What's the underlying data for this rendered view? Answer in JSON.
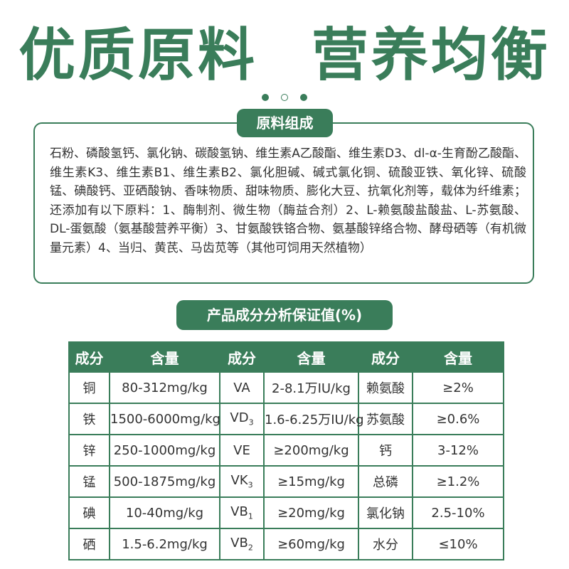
{
  "headline": {
    "left": "优质原料",
    "right": "营养均衡"
  },
  "composition": {
    "label": "原料组成",
    "text": "石粉、磷酸氢钙、氯化钠、碳酸氢钠、维生素A乙酸酯、维生素D3、dl-α-生育酚乙酸酯、维生素K3、维生素B1、维生素B2、氯化胆碱、碱式氯化铜、硫酸亚铁、氧化锌、硫酸锰、碘酸钙、亚硒酸钠、香味物质、甜味物质、膨化大豆、抗氧化剂等，载体为纤维素；还添加有以下原料：1、酶制剂、微生物（酶益合剂）2、L-赖氨酸盐酸盐、L-苏氨酸、DL-蛋氨酸（氨基酸营养平衡）3、甘氨酸铁铬合物、氨基酸锌络合物、酵母硒等（有机微量元素）4、当归、黄芪、马齿苋等（其他可饲用天然植物）"
  },
  "analysis": {
    "label": "产品成分分析保证值(%)",
    "headers": [
      "成分",
      "含量",
      "成分",
      "含量",
      "成分",
      "含量"
    ],
    "rows": [
      {
        "n1": "铜",
        "v1": "80-312mg/kg",
        "n2": "VA",
        "n2sub": "",
        "v2": "2-8.1万IU/kg",
        "n3": "赖氨酸",
        "v3": "≥2%"
      },
      {
        "n1": "铁",
        "v1": "1500-6000mg/kg",
        "n2": "VD",
        "n2sub": "3",
        "v2": "1.6-6.25万IU/kg",
        "n3": "苏氨酸",
        "v3": "≥0.6%"
      },
      {
        "n1": "锌",
        "v1": "250-1000mg/kg",
        "n2": "VE",
        "n2sub": "",
        "v2": "≥200mg/kg",
        "n3": "钙",
        "v3": "3-12%"
      },
      {
        "n1": "锰",
        "v1": "500-1875mg/kg",
        "n2": "VK",
        "n2sub": "3",
        "v2": "≥15mg/kg",
        "n3": "总磷",
        "v3": "≥1.2%"
      },
      {
        "n1": "碘",
        "v1": "10-40mg/kg",
        "n2": "VB",
        "n2sub": "1",
        "v2": "≥20mg/kg",
        "n3": "氯化钠",
        "v3": "2.5-10%"
      },
      {
        "n1": "硒",
        "v1": "1.5-6.2mg/kg",
        "n2": "VB",
        "n2sub": "2",
        "v2": "≥60mg/kg",
        "n3": "水分",
        "v3": "≤10%"
      }
    ]
  },
  "colors": {
    "accent": "#3a7d5a"
  }
}
